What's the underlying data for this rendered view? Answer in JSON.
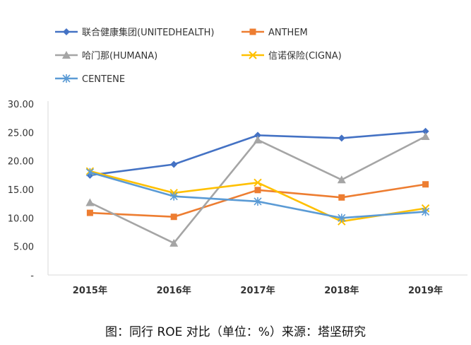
{
  "chart_data": {
    "type": "line",
    "title": "",
    "xlabel": "",
    "ylabel": "",
    "categories": [
      "2015年",
      "2016年",
      "2017年",
      "2018年",
      "2019年"
    ],
    "ylim": [
      0,
      30
    ],
    "y_ticks": [
      "30.00",
      "25.00",
      "20.00",
      "15.00",
      "10.00",
      "5.00",
      "-"
    ],
    "y_tick_values": [
      30,
      25,
      20,
      15,
      10,
      5,
      0
    ],
    "grid": false,
    "legend_position": "top",
    "series": [
      {
        "name": "联合健康集团(UNITEDHEALTH)",
        "color": "#4472C4",
        "marker": "diamond",
        "values": [
          17.5,
          19.4,
          24.5,
          24.0,
          25.2
        ]
      },
      {
        "name": "ANTHEM",
        "color": "#ED7D31",
        "marker": "square",
        "values": [
          10.9,
          10.2,
          14.9,
          13.6,
          15.9
        ]
      },
      {
        "name": "哈门那(HUMANA)",
        "color": "#A5A5A5",
        "marker": "triangle",
        "values": [
          12.7,
          5.6,
          23.7,
          16.7,
          24.3
        ]
      },
      {
        "name": "信诺保险(CIGNA)",
        "color": "#FFC000",
        "marker": "x",
        "values": [
          18.2,
          14.4,
          16.2,
          9.4,
          11.7
        ]
      },
      {
        "name": "CENTENE",
        "color": "#5B9BD5",
        "marker": "star",
        "values": [
          18.0,
          13.8,
          12.9,
          10.0,
          11.1
        ]
      }
    ]
  },
  "caption": "图：同行 ROE 对比（单位：%）来源：塔坚研究"
}
